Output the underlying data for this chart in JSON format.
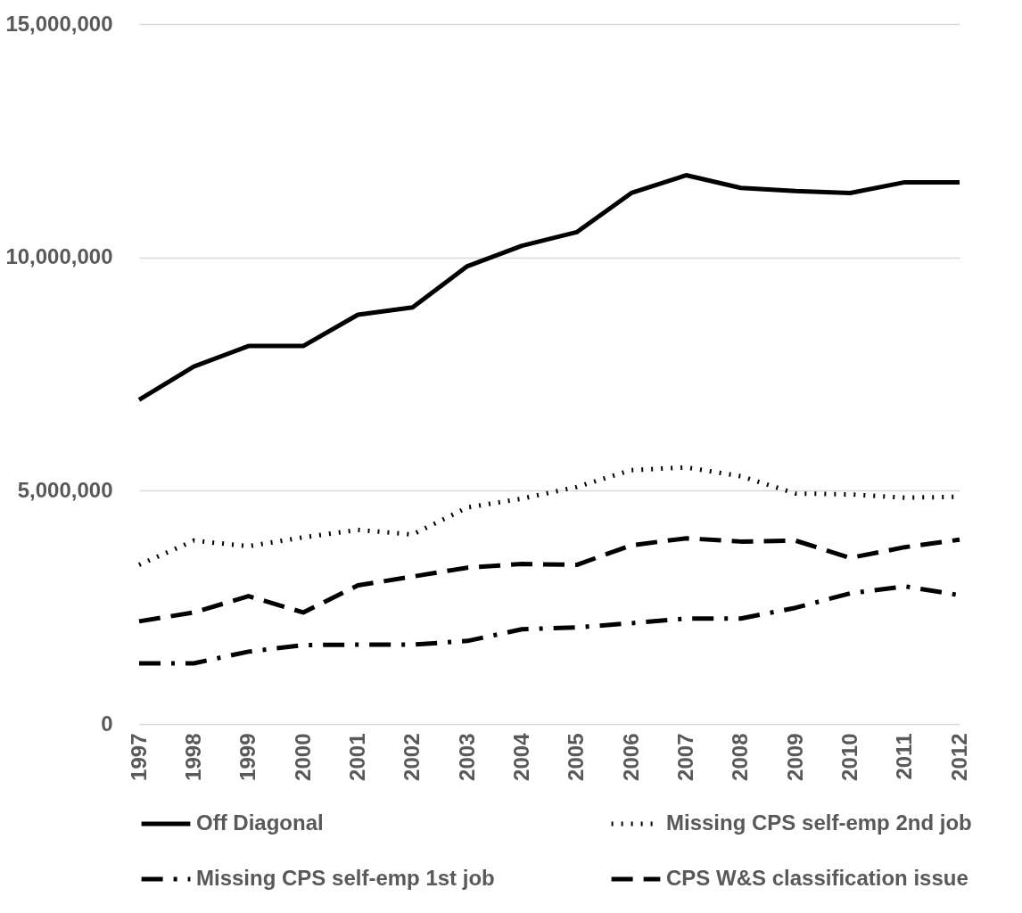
{
  "chart_data": {
    "type": "line",
    "categories": [
      "1997",
      "1998",
      "1999",
      "2000",
      "2001",
      "2002",
      "2003",
      "2004",
      "2005",
      "2006",
      "2007",
      "2008",
      "2009",
      "2010",
      "2011",
      "2012"
    ],
    "series": [
      {
        "name": "Off Diagonal",
        "color": "#000000",
        "line_style": "solid",
        "values": [
          6950000,
          7660000,
          8100000,
          8100000,
          8770000,
          8930000,
          9810000,
          10250000,
          10540000,
          11380000,
          11760000,
          11490000,
          11420000,
          11380000,
          11610000,
          11610000
        ]
      },
      {
        "name": "Missing CPS self-emp 2nd job",
        "color": "#000000",
        "line_style": "dotted",
        "values": [
          3410000,
          3930000,
          3810000,
          4000000,
          4160000,
          4060000,
          4640000,
          4830000,
          5080000,
          5440000,
          5500000,
          5310000,
          4940000,
          4920000,
          4850000,
          4870000
        ]
      },
      {
        "name": "Missing CPS self-emp 1st job",
        "color": "#000000",
        "line_style": "dashdot",
        "values": [
          1300000,
          1300000,
          1550000,
          1690000,
          1700000,
          1700000,
          1780000,
          2030000,
          2070000,
          2160000,
          2260000,
          2260000,
          2490000,
          2800000,
          2950000,
          2760000
        ]
      },
      {
        "name": "CPS W&S classification issue",
        "color": "#000000",
        "line_style": "dashed",
        "values": [
          2200000,
          2390000,
          2740000,
          2390000,
          2970000,
          3160000,
          3350000,
          3430000,
          3410000,
          3830000,
          3980000,
          3910000,
          3930000,
          3560000,
          3790000,
          3950000
        ]
      }
    ],
    "ylim": [
      0,
      15000000
    ],
    "yticks": [
      0,
      {
        "value": 5000000,
        "label": "5,000,000"
      },
      {
        "value": 10000000,
        "label": "10,000,000"
      },
      {
        "value": 15000000,
        "label": "15,000,000"
      }
    ],
    "grid": "y",
    "legend": "bottom",
    "marker": "none"
  }
}
